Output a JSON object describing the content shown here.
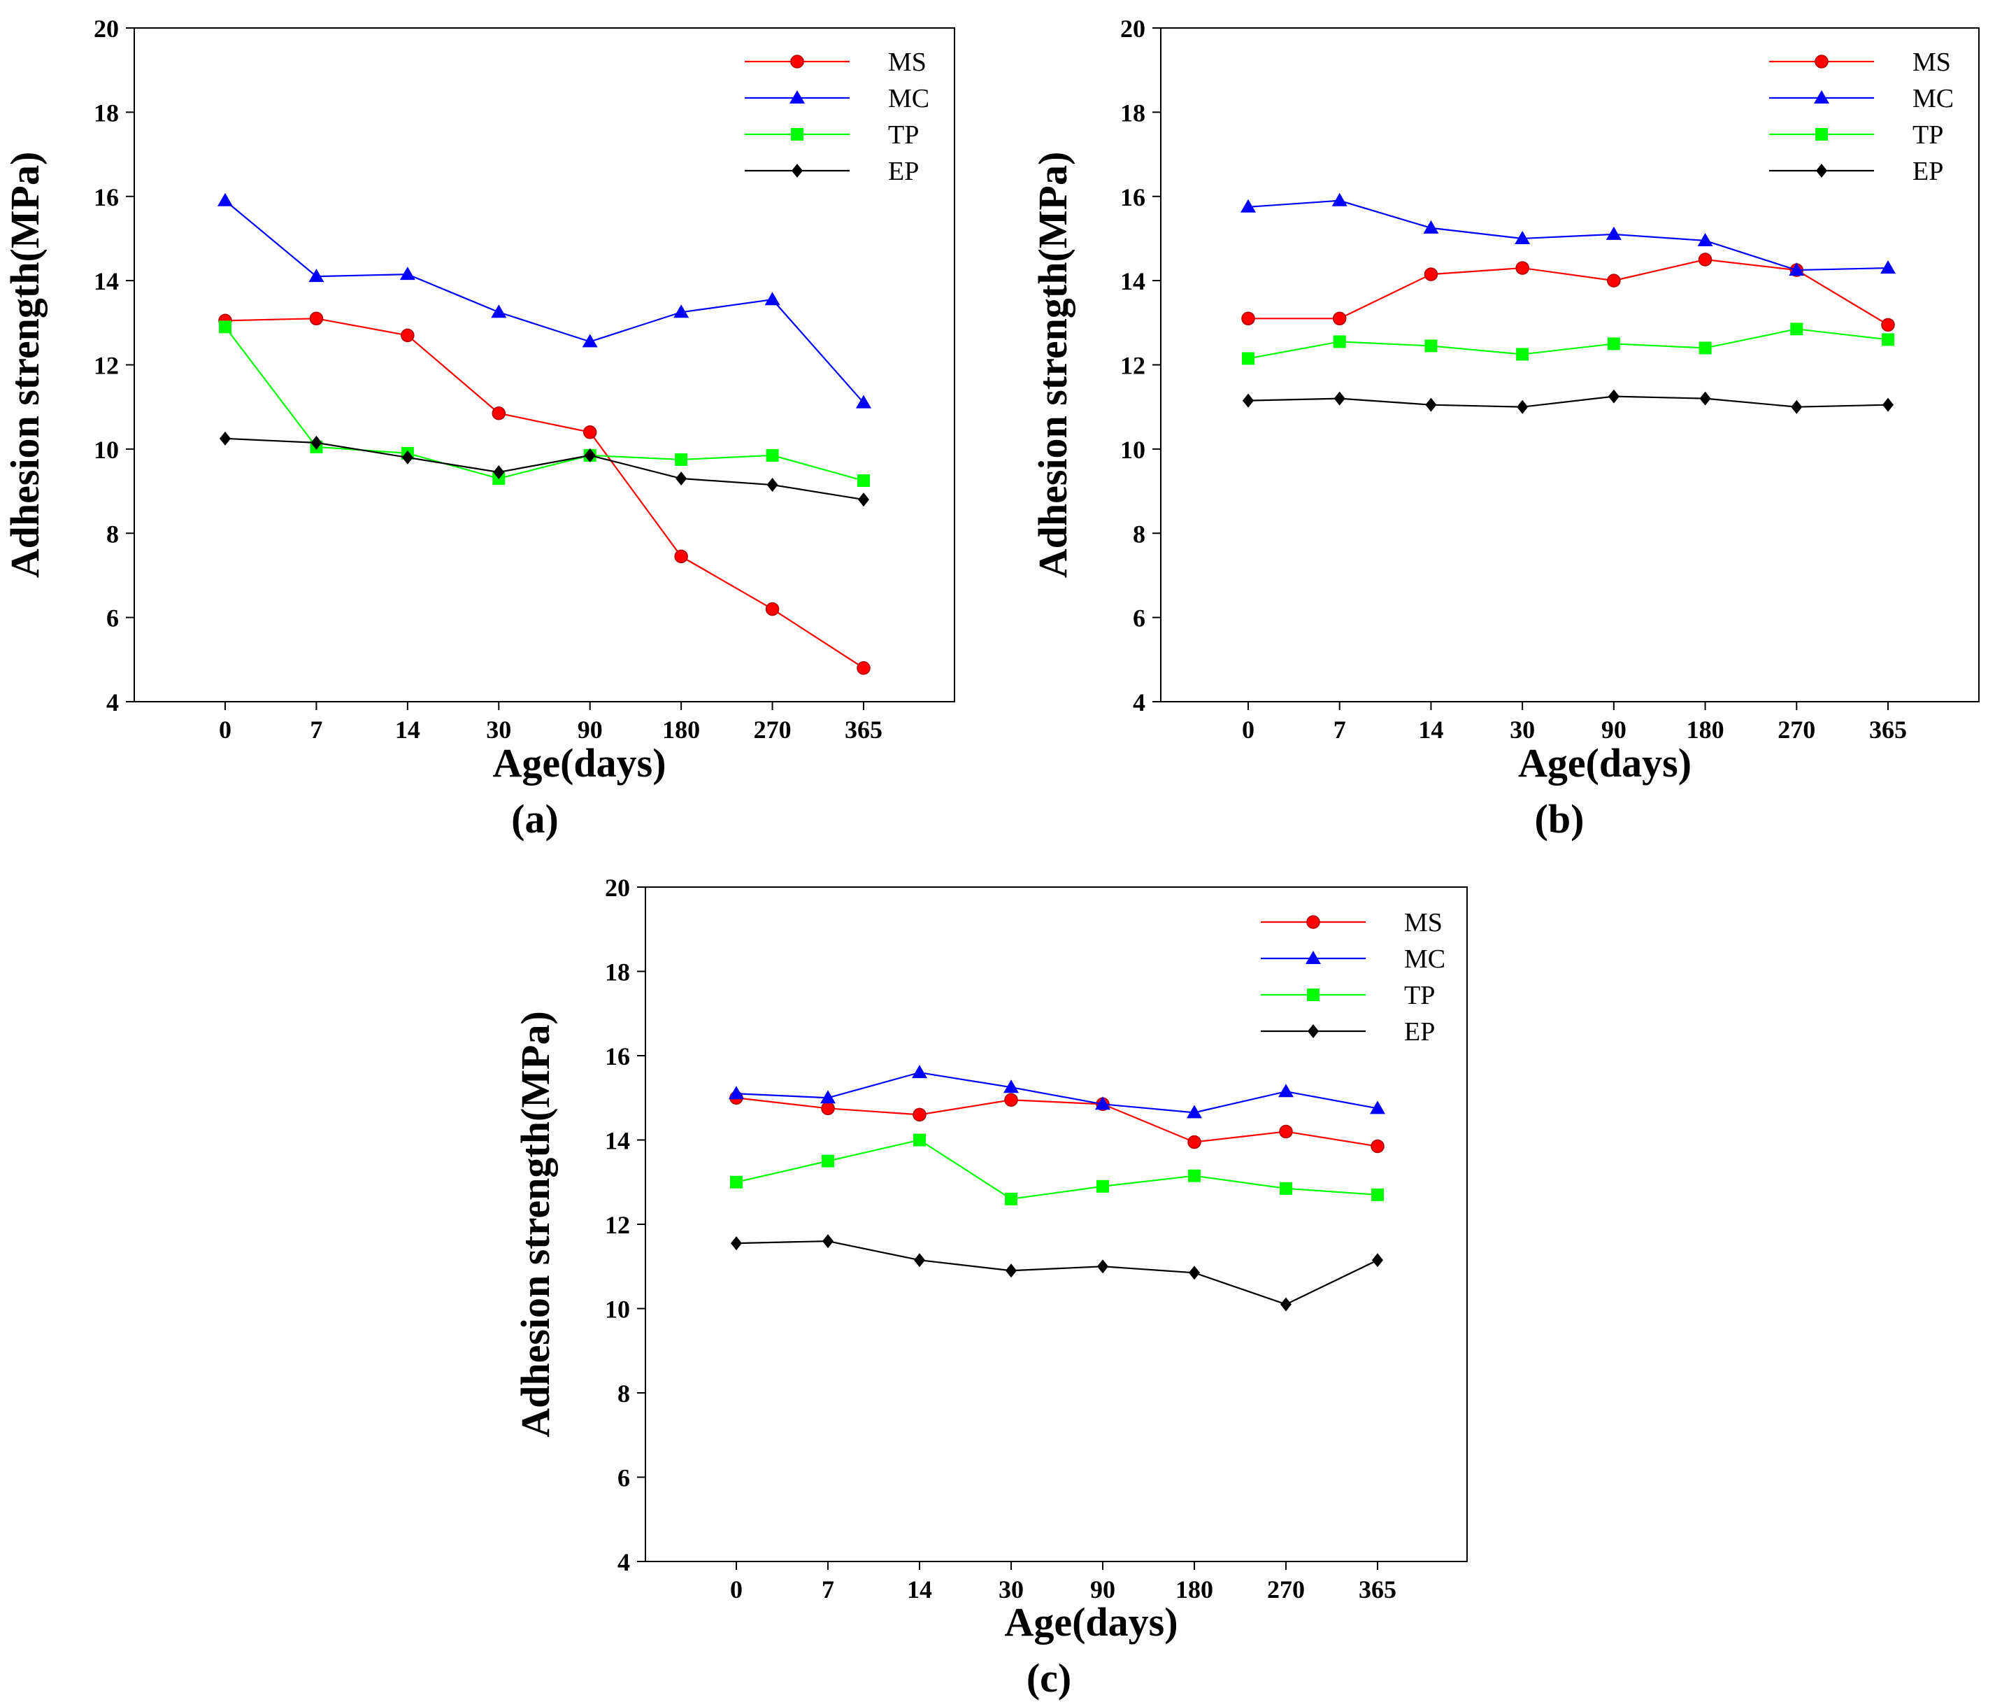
{
  "figure": {
    "style": {
      "tick_color": "#000000",
      "frame_color": "#000000"
    }
  },
  "chart_data": [
    {
      "type": "line",
      "panel_label": "(a)",
      "xlabel": "Age(days)",
      "ylabel": "Adhesion strength(MPa)",
      "categories": [
        "0",
        "7",
        "14",
        "30",
        "90",
        "180",
        "270",
        "365"
      ],
      "ylim": [
        4,
        20
      ],
      "yticks": [
        4,
        6,
        8,
        10,
        12,
        14,
        16,
        18,
        20
      ],
      "legend_position": "top-right",
      "series": [
        {
          "name": "MS",
          "color": "#ff0000",
          "marker": "circle",
          "values": [
            13.05,
            13.1,
            12.7,
            10.85,
            10.4,
            7.45,
            6.2,
            4.8
          ]
        },
        {
          "name": "MC",
          "color": "#0000ff",
          "marker": "triangle",
          "values": [
            15.9,
            14.1,
            14.15,
            13.25,
            12.55,
            13.25,
            13.55,
            11.1
          ]
        },
        {
          "name": "TP",
          "color": "#00ff00",
          "marker": "square",
          "values": [
            12.9,
            10.05,
            9.9,
            9.3,
            9.85,
            9.75,
            9.85,
            9.25
          ]
        },
        {
          "name": "EP",
          "color": "#000000",
          "marker": "diamond",
          "values": [
            10.25,
            10.15,
            9.8,
            9.45,
            9.85,
            9.3,
            9.15,
            8.8
          ]
        }
      ]
    },
    {
      "type": "line",
      "panel_label": "(b)",
      "xlabel": "Age(days)",
      "ylabel": "Adhesion strength(MPa)",
      "categories": [
        "0",
        "7",
        "14",
        "30",
        "90",
        "180",
        "270",
        "365"
      ],
      "ylim": [
        4,
        20
      ],
      "yticks": [
        4,
        6,
        8,
        10,
        12,
        14,
        16,
        18,
        20
      ],
      "legend_position": "top-right",
      "series": [
        {
          "name": "MS",
          "color": "#ff0000",
          "marker": "circle",
          "values": [
            13.1,
            13.1,
            14.15,
            14.3,
            14.0,
            14.5,
            14.25,
            12.95
          ]
        },
        {
          "name": "MC",
          "color": "#0000ff",
          "marker": "triangle",
          "values": [
            15.75,
            15.9,
            15.25,
            15.0,
            15.1,
            14.95,
            14.25,
            14.3
          ]
        },
        {
          "name": "TP",
          "color": "#00ff00",
          "marker": "square",
          "values": [
            12.15,
            12.55,
            12.45,
            12.25,
            12.5,
            12.4,
            12.85,
            12.6
          ]
        },
        {
          "name": "EP",
          "color": "#000000",
          "marker": "diamond",
          "values": [
            11.15,
            11.2,
            11.05,
            11.0,
            11.25,
            11.2,
            11.0,
            11.05
          ]
        }
      ]
    },
    {
      "type": "line",
      "panel_label": "(c)",
      "xlabel": "Age(days)",
      "ylabel": "Adhesion strength(MPa)",
      "categories": [
        "0",
        "7",
        "14",
        "30",
        "90",
        "180",
        "270",
        "365"
      ],
      "ylim": [
        4,
        20
      ],
      "yticks": [
        4,
        6,
        8,
        10,
        12,
        14,
        16,
        18,
        20
      ],
      "legend_position": "top-right",
      "series": [
        {
          "name": "MS",
          "color": "#ff0000",
          "marker": "circle",
          "values": [
            15.0,
            14.75,
            14.6,
            14.95,
            14.85,
            13.95,
            14.2,
            13.85
          ]
        },
        {
          "name": "MC",
          "color": "#0000ff",
          "marker": "triangle",
          "values": [
            15.1,
            15.0,
            15.6,
            15.25,
            14.85,
            14.65,
            15.15,
            14.75
          ]
        },
        {
          "name": "TP",
          "color": "#00ff00",
          "marker": "square",
          "values": [
            13.0,
            13.5,
            14.0,
            12.6,
            12.9,
            13.15,
            12.85,
            12.7
          ]
        },
        {
          "name": "EP",
          "color": "#000000",
          "marker": "diamond",
          "values": [
            11.55,
            11.6,
            11.15,
            10.9,
            11.0,
            10.85,
            10.1,
            11.15
          ]
        }
      ]
    }
  ]
}
